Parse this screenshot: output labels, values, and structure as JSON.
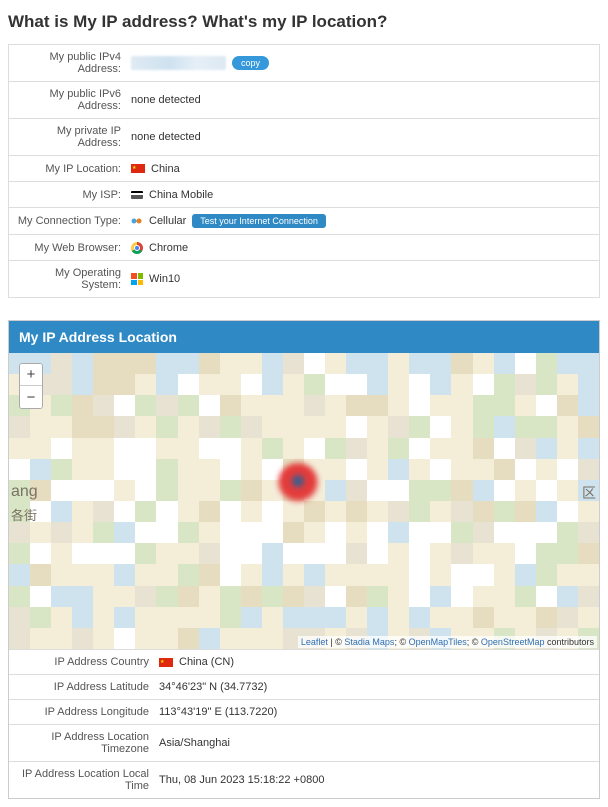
{
  "page": {
    "title": "What is My IP address? What's my IP location?"
  },
  "info": {
    "ipv4_label": "My public IPv4 Address:",
    "copy_label": "copy",
    "ipv6_label": "My public IPv6 Address:",
    "ipv6_value": "none detected",
    "private_label": "My private IP Address:",
    "private_value": "none detected",
    "location_label": "My IP Location:",
    "location_value": "China",
    "isp_label": "My ISP:",
    "isp_value": "China Mobile",
    "conn_label": "My Connection Type:",
    "conn_value": "Cellular",
    "test_btn": "Test your Internet Connection",
    "browser_label": "My Web Browser:",
    "browser_value": "Chrome",
    "os_label": "My Operating System:",
    "os_value": "Win10"
  },
  "map": {
    "header": "My IP Address Location",
    "zoom_in": "+",
    "zoom_out": "−",
    "side_label_1": "ang",
    "side_label_2": "各街",
    "side_label_3": "区",
    "attrib_leaflet": "Leaflet",
    "attrib_sep1": " | © ",
    "attrib_stadia": "Stadia Maps",
    "attrib_sep2": "; © ",
    "attrib_omt": "OpenMapTiles",
    "attrib_sep3": "; © ",
    "attrib_osm": "OpenStreetMap",
    "attrib_tail": " contributors",
    "colors": {
      "land": "#f4eed9",
      "road": "#ffffff",
      "water": "#cfe3ee",
      "green": "#d9e6c5",
      "dark": "#e6dcbf",
      "grey": "#e8e2d2"
    }
  },
  "loc": {
    "country_label": "IP Address Country",
    "country_value": "China (CN)",
    "lat_label": "IP Address Latitude",
    "lat_value": "34°46'23\" N (34.7732)",
    "lon_label": "IP Address Longitude",
    "lon_value": "113°43'19\" E (113.7220)",
    "tz_label": "IP Address Location Timezone",
    "tz_value": "Asia/Shanghai",
    "time_label": "IP Address Location Local Time",
    "time_value": "Thu, 08 Jun 2023 15:18:22 +0800"
  }
}
